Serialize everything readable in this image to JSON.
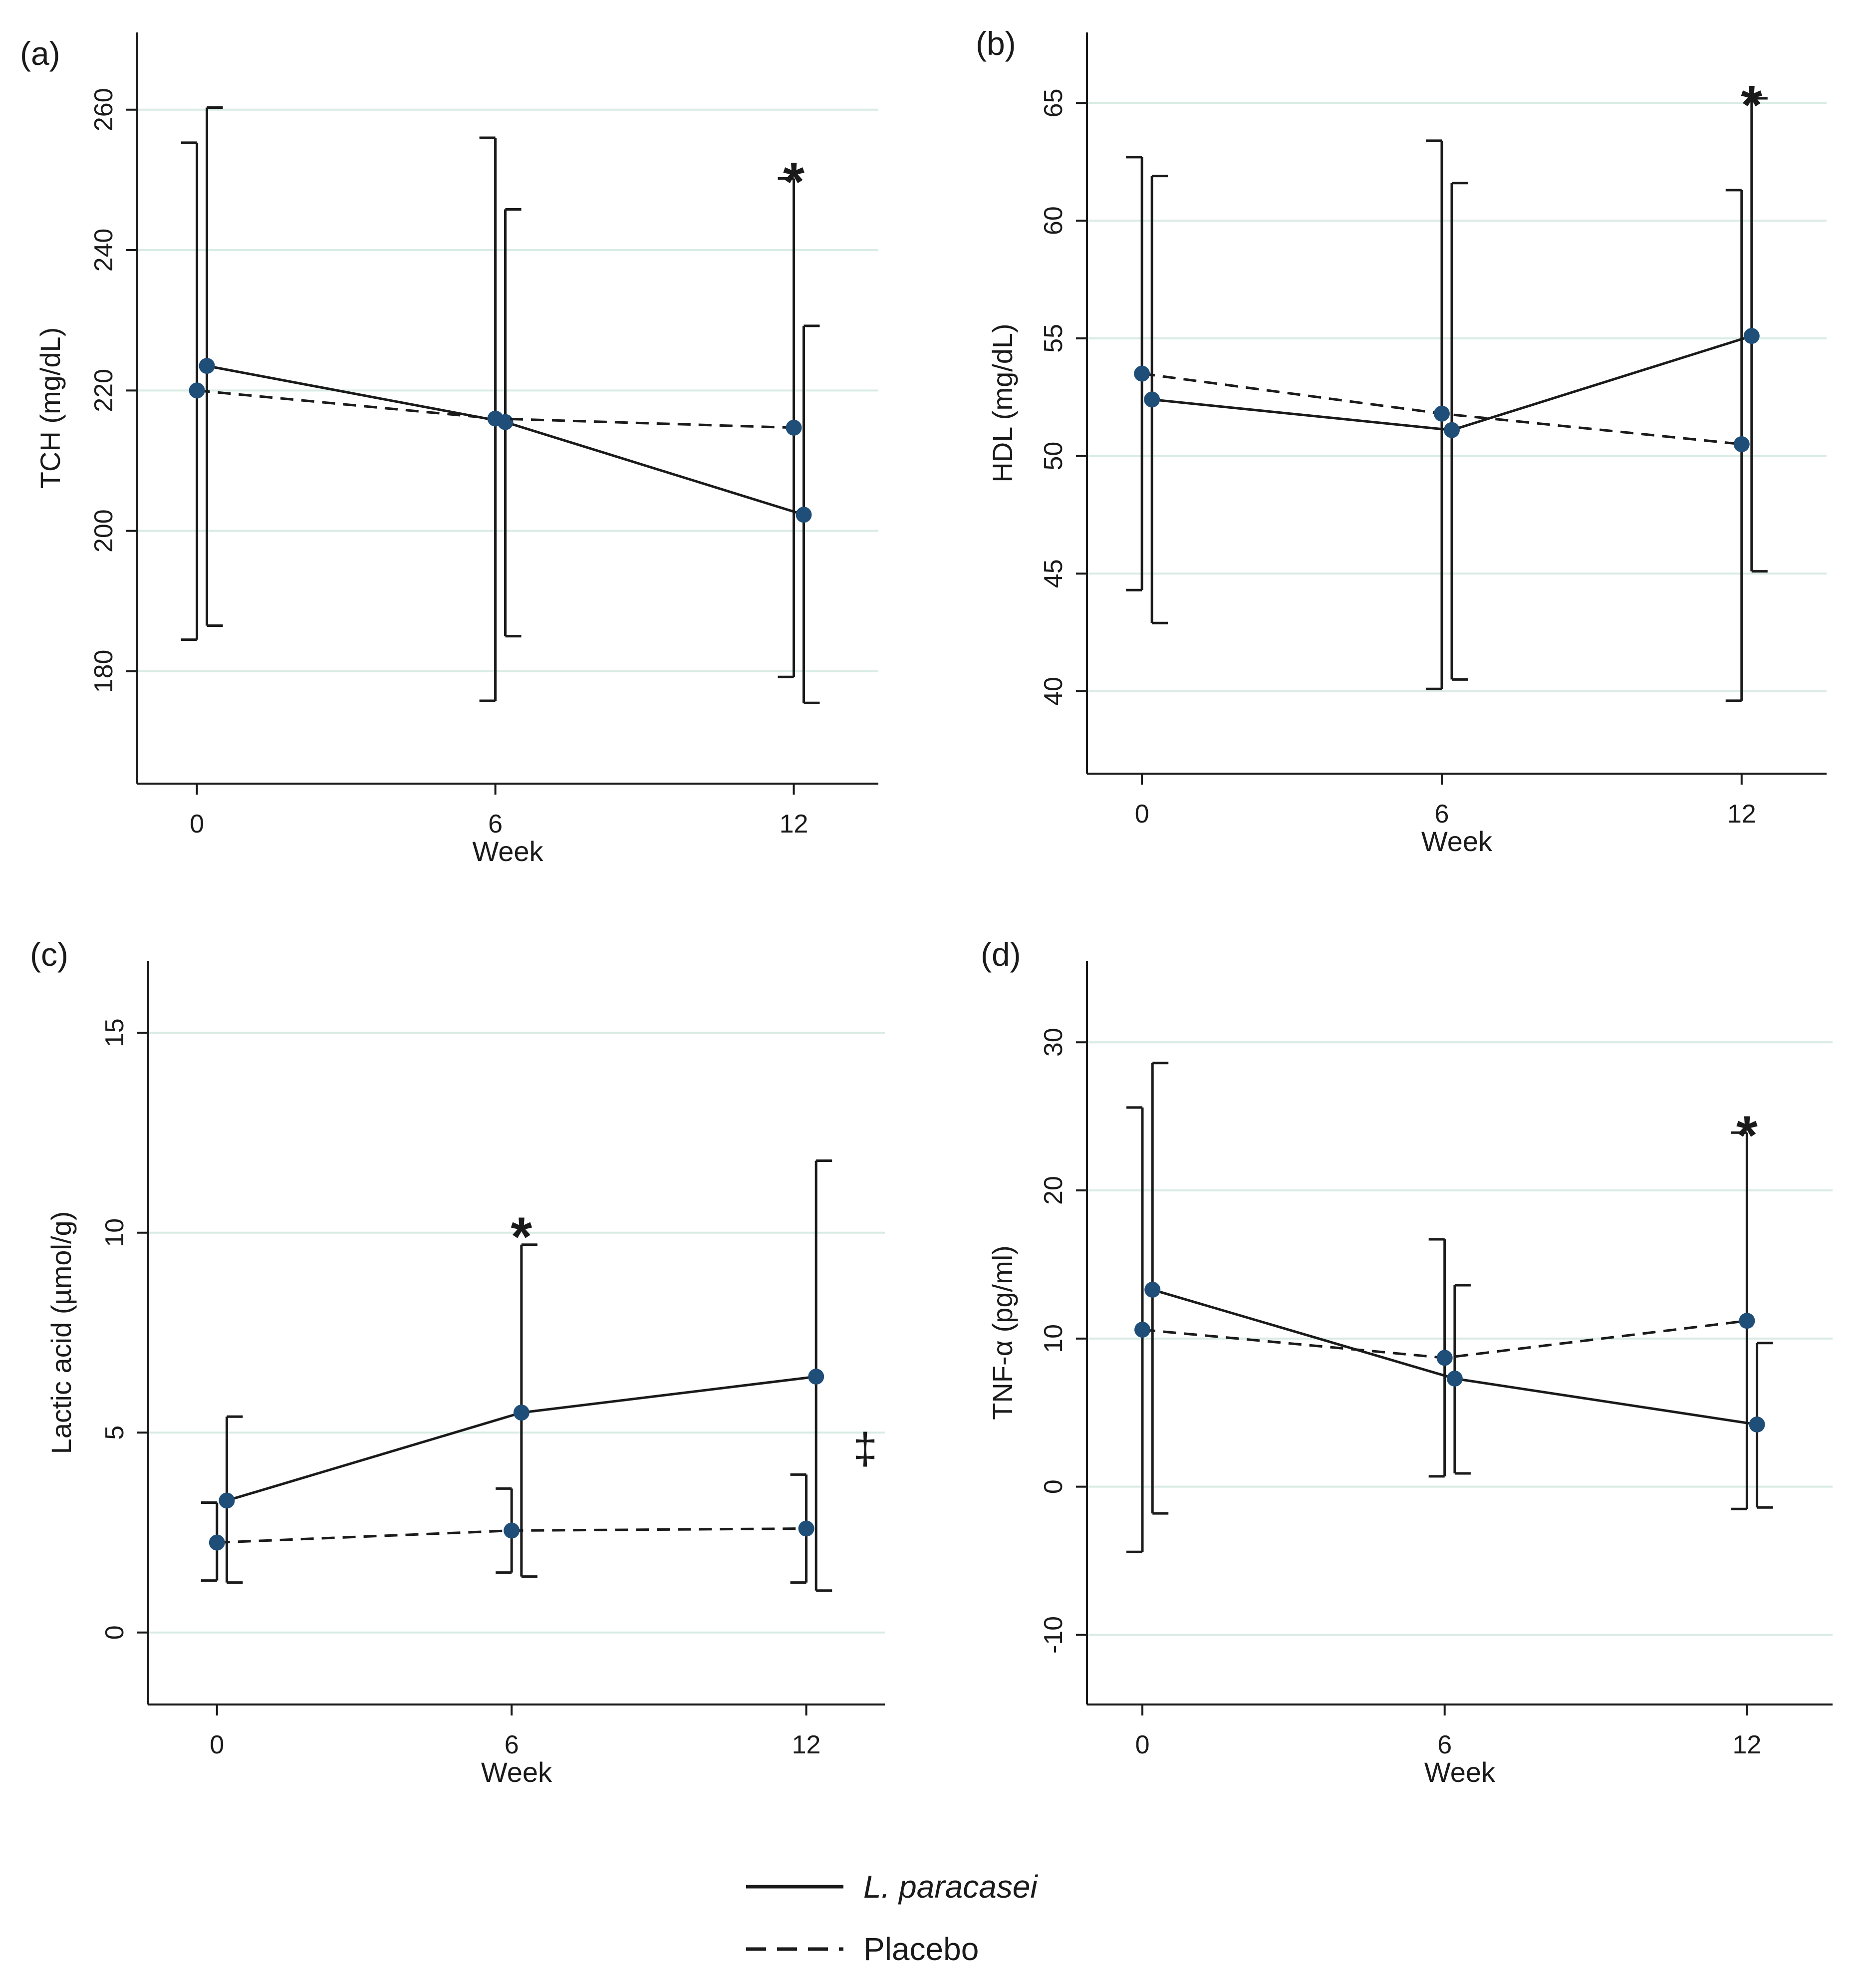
{
  "chart_data": [
    {
      "type": "line",
      "panel": "(a)",
      "xlabel": "Week",
      "ylabel": "TCH (mg/dL)",
      "xlim": [
        -1.2,
        13.7
      ],
      "ylim": [
        164,
        271
      ],
      "xticks": [
        0,
        6,
        12
      ],
      "yticks": [
        180,
        200,
        220,
        240,
        260
      ],
      "series": [
        {
          "name": "L. paracasei",
          "style": "solid",
          "x": [
            0.2,
            6.2,
            12.2
          ],
          "y": [
            223.5,
            215.5,
            202.3
          ],
          "err_low": [
            186.5,
            185,
            175.5
          ],
          "err_high": [
            260.3,
            245.8,
            229.2
          ]
        },
        {
          "name": "Placebo",
          "style": "dashed",
          "x": [
            0,
            6,
            12
          ],
          "y": [
            220,
            216,
            214.7
          ],
          "err_low": [
            184.5,
            175.8,
            179.2
          ],
          "err_high": [
            255.3,
            256,
            250.2
          ]
        }
      ],
      "annotations": [
        {
          "text": "*",
          "x": 12,
          "y": 252
        }
      ]
    },
    {
      "type": "line",
      "panel": "(b)",
      "xlabel": "Week",
      "ylabel": "HDL (mg/dL)",
      "xlim": [
        -1.1,
        13.7
      ],
      "ylim": [
        36.5,
        68
      ],
      "xticks": [
        0,
        6,
        12
      ],
      "yticks": [
        40,
        45,
        50,
        55,
        60,
        65
      ],
      "series": [
        {
          "name": "L. paracasei",
          "style": "solid",
          "x": [
            0.2,
            6.2,
            12.2
          ],
          "y": [
            52.4,
            51.1,
            55.1
          ],
          "err_low": [
            42.9,
            40.5,
            45.1
          ],
          "err_high": [
            61.9,
            61.6,
            65.2
          ]
        },
        {
          "name": "Placebo",
          "style": "dashed",
          "x": [
            0,
            6,
            12
          ],
          "y": [
            53.5,
            51.8,
            50.5
          ],
          "err_low": [
            44.3,
            40.1,
            39.6
          ],
          "err_high": [
            62.7,
            63.4,
            61.3
          ]
        }
      ],
      "annotations": [
        {
          "text": "*",
          "x": 12.2,
          "y": 65.6
        }
      ]
    },
    {
      "type": "line",
      "panel": "(c)",
      "xlabel": "Week",
      "ylabel": "Lactic acid (µmol/g)",
      "xlim": [
        -1.4,
        13.6
      ],
      "ylim": [
        -1.8,
        16.8
      ],
      "xticks": [
        0,
        6,
        12
      ],
      "yticks": [
        0,
        5,
        10,
        15
      ],
      "series": [
        {
          "name": "L. paracasei",
          "style": "solid",
          "x": [
            0.2,
            6.2,
            12.2
          ],
          "y": [
            3.3,
            5.5,
            6.4
          ],
          "err_low": [
            1.25,
            1.4,
            1.05
          ],
          "err_high": [
            5.4,
            9.7,
            11.8
          ]
        },
        {
          "name": "Placebo",
          "style": "dashed",
          "x": [
            0,
            6,
            12
          ],
          "y": [
            2.25,
            2.55,
            2.6
          ],
          "err_low": [
            1.3,
            1.5,
            1.25
          ],
          "err_high": [
            3.25,
            3.6,
            3.95
          ]
        }
      ],
      "annotations": [
        {
          "text": "*",
          "x": 6.2,
          "y": 10.3
        },
        {
          "text": "‡",
          "x": 13.2,
          "y": 4.6
        }
      ]
    },
    {
      "type": "line",
      "panel": "(d)",
      "xlabel": "Week",
      "ylabel": "TNF-α (pg/ml)",
      "xlim": [
        -1.1,
        13.7
      ],
      "ylim": [
        -14.7,
        35.5
      ],
      "xticks": [
        0,
        6,
        12
      ],
      "yticks": [
        -10,
        0,
        10,
        20,
        30
      ],
      "series": [
        {
          "name": "L. paracasei",
          "style": "solid",
          "x": [
            0.2,
            6.2,
            12.2
          ],
          "y": [
            13.3,
            7.3,
            4.2
          ],
          "err_low": [
            -1.8,
            0.9,
            -1.4
          ],
          "err_high": [
            28.6,
            13.6,
            9.7
          ]
        },
        {
          "name": "Placebo",
          "style": "dashed",
          "x": [
            0,
            6,
            12
          ],
          "y": [
            10.6,
            8.7,
            11.2
          ],
          "err_low": [
            -4.4,
            0.7,
            -1.5
          ],
          "err_high": [
            25.6,
            16.7,
            23.9
          ]
        }
      ],
      "annotations": [
        {
          "text": "*",
          "x": 12,
          "y": 24.8
        }
      ]
    }
  ],
  "legend": [
    {
      "label": "L. paracasei",
      "style": "solid"
    },
    {
      "label": "Placebo",
      "style": "dashed"
    }
  ],
  "colors": {
    "marker": "#1f4e79",
    "line": "#1a1a1a",
    "grid": "#d9ece4"
  }
}
